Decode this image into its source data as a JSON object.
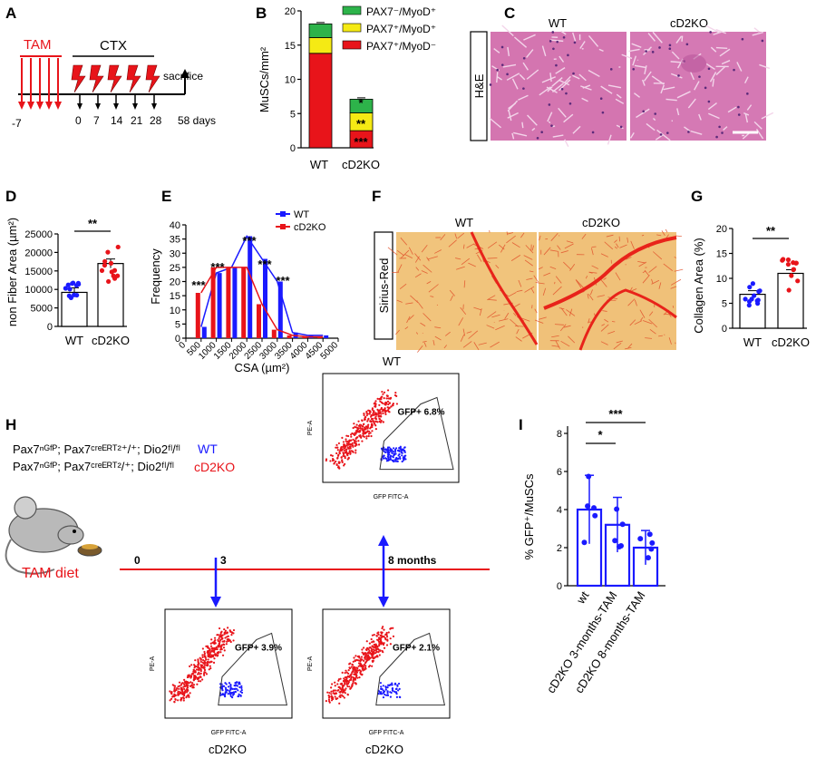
{
  "colors": {
    "wt": "#1a1aff",
    "ko": "#e8141a",
    "green": "#2db34a",
    "yellow": "#f5ea14",
    "red": "#e8141a",
    "he": "#d879b5",
    "sirius": "#f0c27a"
  },
  "panelA": {
    "label": "A",
    "tam": "TAM",
    "ctx": "CTX",
    "sacrifice": "sacrifice",
    "day_neg": "-7",
    "days": [
      "0",
      "7",
      "14",
      "21",
      "28"
    ],
    "end_day": "58 days"
  },
  "panelB": {
    "label": "B",
    "ylabel": "MuSCs/mm²",
    "legend": [
      "PAX7⁻/MyoD⁺",
      "PAX7⁺/MyoD⁺",
      "PAX7⁺/MyoD⁻"
    ],
    "yticks": [
      "0",
      "5",
      "10",
      "15",
      "20"
    ],
    "categories": [
      "WT",
      "cD2KO"
    ],
    "stars": [
      "*",
      "**",
      "***"
    ]
  },
  "panelC": {
    "label": "C",
    "row": "H&E",
    "cols": [
      "WT",
      "cD2KO"
    ]
  },
  "panelD": {
    "label": "D",
    "ylabel": "non Fiber Area (µm²)",
    "yticks": [
      "0",
      "5000",
      "10000",
      "15000",
      "20000",
      "25000"
    ],
    "categories": [
      "WT",
      "cD2KO"
    ],
    "sig": "**"
  },
  "panelE": {
    "label": "E",
    "ylabel": "Frequency",
    "xlabel": "CSA (µm²)",
    "legend": [
      "WT",
      "cD2KO"
    ],
    "yticks": [
      "0",
      "5",
      "10",
      "15",
      "20",
      "25",
      "30",
      "35",
      "40"
    ],
    "xticks": [
      "0",
      "500",
      "1000",
      "1500",
      "2000",
      "2500",
      "3000",
      "3500",
      "4000",
      "4500",
      "5000"
    ],
    "sig": [
      "***",
      "***",
      "***",
      "***",
      "***"
    ]
  },
  "panelF": {
    "label": "F",
    "row": "Sirius-Red",
    "cols": [
      "WT",
      "cD2KO"
    ]
  },
  "panelG": {
    "label": "G",
    "ylabel": "Collagen Area (%)",
    "yticks": [
      "0",
      "5",
      "10",
      "15",
      "20"
    ],
    "categories": [
      "WT",
      "cD2KO"
    ],
    "sig": "**"
  },
  "panelH": {
    "label": "H",
    "genotype_wt": "Pax7ⁿᴳᶠᴾ; Pax7ᶜʳᵉᴱᴿᵀ²⁺/⁺; Dio2ᶠˡ/ᶠˡ",
    "genotype_ko": "Pax7ⁿᴳᶠᴾ; Pax7ᶜʳᵉᴱᴿᵀ²/⁺; Dio2ᶠˡ/ᶠˡ",
    "wt_tag": "WT",
    "ko_tag": "cD2KO",
    "diet": "TAM diet",
    "t0": "0",
    "t3": "3",
    "t8": "8 months",
    "flow_top_title": "WT",
    "flow_top_gate": "GFP+ 6.8%",
    "flow_left_gate": "GFP+ 3.9%",
    "flow_right_gate": "GFP+ 2.1%",
    "flow_left_caption": "cD2KO",
    "flow_right_caption": "cD2KO",
    "flow_xaxis": "GFP FITC-A",
    "flow_yaxis": "PE-A"
  },
  "panelI": {
    "label": "I",
    "ylabel": "% GFP⁺/MuSCs",
    "yticks": [
      "0",
      "2",
      "4",
      "6",
      "8"
    ],
    "categories": [
      "wt",
      "cD2KO 3-months-TAM",
      "cD2KO 8-months-TAM"
    ],
    "sig": [
      "*",
      "***"
    ]
  },
  "chart_data": [
    {
      "type": "bar",
      "title": "B",
      "ylabel": "MuSCs/mm²",
      "categories": [
        "WT",
        "cD2KO"
      ],
      "ylim": [
        0,
        20
      ],
      "series": [
        {
          "name": "PAX7⁺/MyoD⁻",
          "values": [
            13.8,
            2.5
          ]
        },
        {
          "name": "PAX7⁺/MyoD⁺",
          "values": [
            2.3,
            2.6
          ]
        },
        {
          "name": "PAX7⁻/MyoD⁺",
          "values": [
            2.0,
            2.0
          ]
        }
      ]
    },
    {
      "type": "bar",
      "title": "D",
      "ylabel": "non Fiber Area (µm²)",
      "categories": [
        "WT",
        "cD2KO"
      ],
      "values": [
        9200,
        17000
      ],
      "ylim": [
        0,
        25000
      ]
    },
    {
      "type": "bar",
      "title": "E",
      "xlabel": "CSA (µm²)",
      "ylabel": "Frequency",
      "x": [
        500,
        1000,
        1500,
        2000,
        2500,
        3000,
        3500,
        4000,
        4500
      ],
      "ylim": [
        0,
        40
      ],
      "series": [
        {
          "name": "WT",
          "values": [
            4,
            23,
            25,
            36,
            28,
            20,
            2,
            1,
            1
          ]
        },
        {
          "name": "cD2KO",
          "values": [
            16,
            25,
            25,
            25,
            12,
            3,
            1,
            0.5,
            0.5
          ]
        }
      ]
    },
    {
      "type": "bar",
      "title": "G",
      "ylabel": "Collagen Area (%)",
      "categories": [
        "WT",
        "cD2KO"
      ],
      "values": [
        6.8,
        11.0
      ],
      "ylim": [
        0,
        20
      ]
    },
    {
      "type": "bar",
      "title": "I",
      "ylabel": "% GFP⁺/MuSCs",
      "categories": [
        "wt",
        "cD2KO 3-months-TAM",
        "cD2KO 8-months-TAM"
      ],
      "values": [
        4.0,
        3.2,
        2.0
      ],
      "ylim": [
        0,
        8
      ]
    }
  ]
}
